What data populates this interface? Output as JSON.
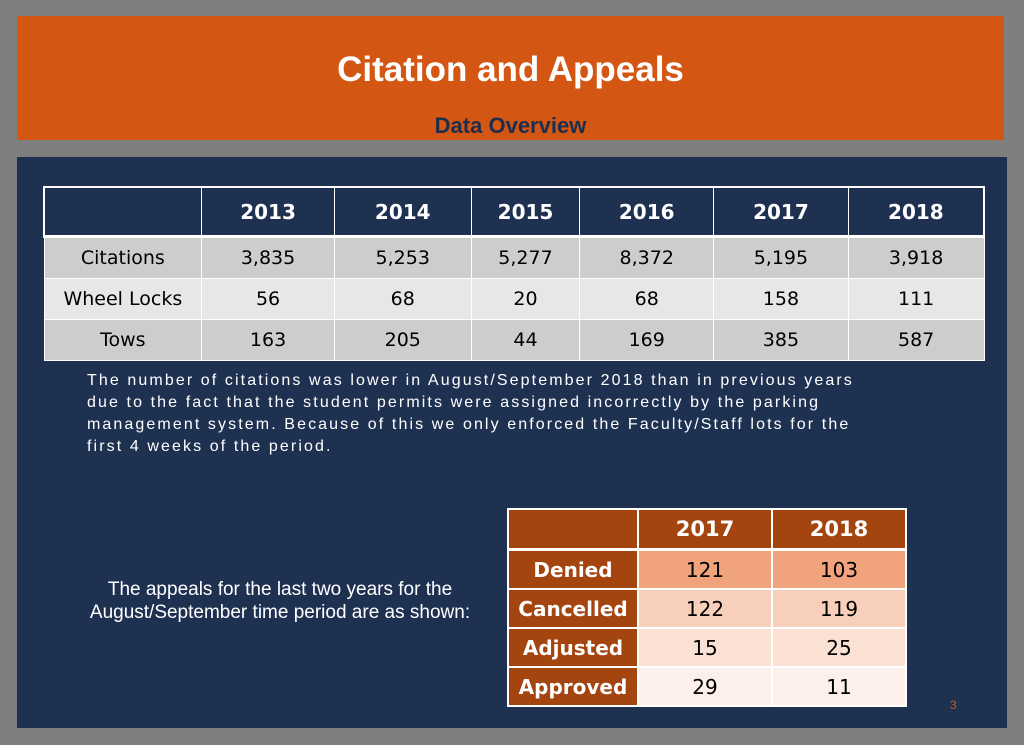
{
  "header": {
    "title": "Citation and Appeals",
    "subtitle": "Data Overview"
  },
  "citations_table": {
    "columns": [
      "",
      "2013",
      "2014",
      "2015",
      "2016",
      "2017",
      "2018"
    ],
    "rows": [
      {
        "label": "Citations",
        "values": [
          "3,835",
          "5,253",
          "5,277",
          "8,372",
          "5,195",
          "3,918"
        ]
      },
      {
        "label": "Wheel Locks",
        "values": [
          "56",
          "68",
          "20",
          "68",
          "158",
          "111"
        ]
      },
      {
        "label": "Tows",
        "values": [
          "163",
          "205",
          "44",
          "169",
          "385",
          "587"
        ]
      }
    ]
  },
  "note": {
    "lines": [
      "The number of citations was lower in August/September 2018 than in previous years",
      "due to the fact that the student permits were assigned incorrectly by the parking",
      "management system.  Because of this we only enforced the Faculty/Staff lots for the",
      "first 4 weeks of the period."
    ]
  },
  "appeals_text": {
    "line1": "The appeals for the last two years for the",
    "line2": "August/September time period are as shown:"
  },
  "appeals_table": {
    "columns": [
      "",
      "2017",
      "2018"
    ],
    "rows": [
      {
        "label": "Denied",
        "values": [
          "121",
          "103"
        ]
      },
      {
        "label": "Cancelled",
        "values": [
          "122",
          "119"
        ]
      },
      {
        "label": "Adjusted",
        "values": [
          "15",
          "25"
        ]
      },
      {
        "label": "Approved",
        "values": [
          "29",
          "11"
        ]
      }
    ]
  },
  "page_number": "3",
  "colors": {
    "header_orange": "#d35613",
    "panel_navy": "#1f3150",
    "table_brown": "#a4440f"
  }
}
